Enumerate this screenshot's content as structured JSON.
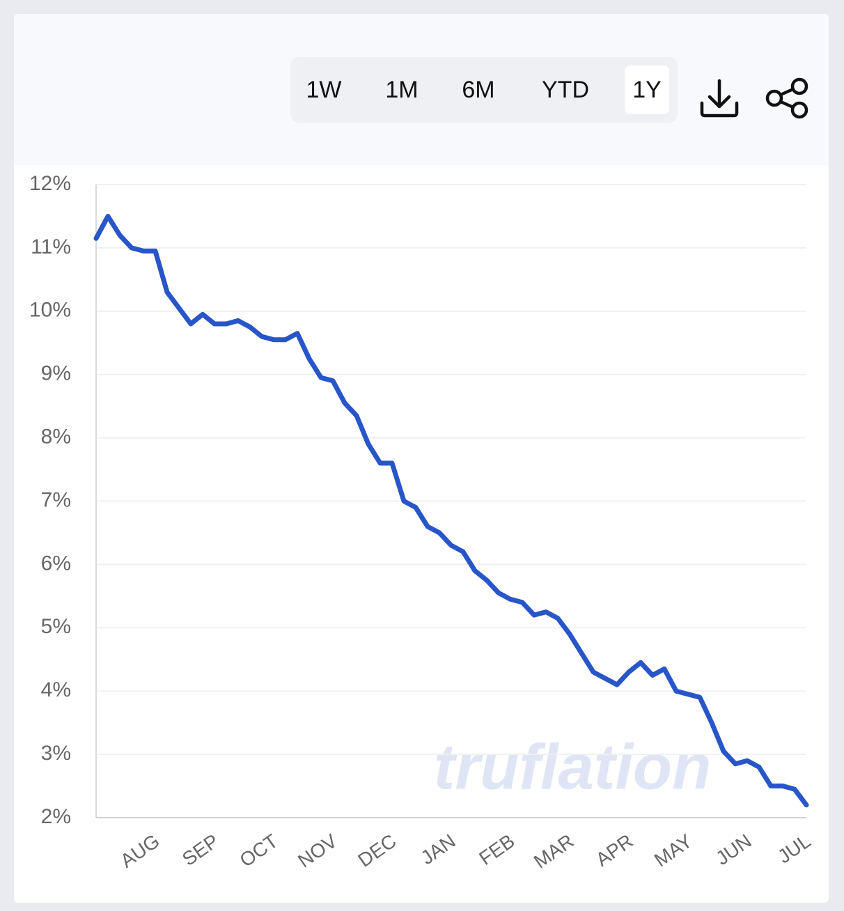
{
  "header": {
    "range_buttons": [
      "1W",
      "1M",
      "6M",
      "YTD",
      "1Y"
    ],
    "selected": "1Y"
  },
  "watermark": "truflation",
  "chart_data": {
    "type": "line",
    "color": "#2856c8",
    "line_width": 7,
    "grid": true,
    "categories": [
      null,
      null,
      null,
      null,
      null,
      "AUG",
      null,
      null,
      null,
      null,
      "SEP",
      null,
      null,
      null,
      null,
      "OCT",
      null,
      null,
      null,
      null,
      "NOV",
      null,
      null,
      null,
      null,
      "DEC",
      null,
      null,
      null,
      null,
      "JAN",
      null,
      null,
      null,
      null,
      "FEB",
      null,
      null,
      null,
      null,
      "MAR",
      null,
      null,
      null,
      null,
      "APR",
      null,
      null,
      null,
      null,
      "MAY",
      null,
      null,
      null,
      null,
      "JUN",
      null,
      null,
      null,
      null,
      "JUL"
    ],
    "values": [
      11.15,
      11.5,
      11.2,
      11.0,
      10.95,
      10.95,
      10.3,
      10.05,
      9.8,
      9.95,
      9.8,
      9.8,
      9.85,
      9.75,
      9.6,
      9.55,
      9.55,
      9.65,
      9.25,
      8.95,
      8.9,
      8.55,
      8.35,
      7.9,
      7.6,
      7.6,
      7.0,
      6.9,
      6.6,
      6.5,
      6.3,
      6.2,
      5.9,
      5.75,
      5.55,
      5.45,
      5.4,
      5.2,
      5.25,
      5.15,
      4.9,
      4.6,
      4.3,
      4.2,
      4.1,
      4.3,
      4.45,
      4.25,
      4.35,
      4.0,
      3.95,
      3.9,
      3.5,
      3.05,
      2.85,
      2.9,
      2.8,
      2.5,
      2.5,
      2.45,
      2.2
    ],
    "ylim": [
      2,
      12
    ],
    "yticks": [
      {
        "value": 2,
        "label": "2%"
      },
      {
        "value": 3,
        "label": "3%"
      },
      {
        "value": 4,
        "label": "4%"
      },
      {
        "value": 5,
        "label": "5%"
      },
      {
        "value": 6,
        "label": "6%"
      },
      {
        "value": 7,
        "label": "7%"
      },
      {
        "value": 8,
        "label": "8%"
      },
      {
        "value": 9,
        "label": "9%"
      },
      {
        "value": 10,
        "label": "10%"
      },
      {
        "value": 11,
        "label": "11%"
      },
      {
        "value": 12,
        "label": "12%"
      }
    ]
  }
}
